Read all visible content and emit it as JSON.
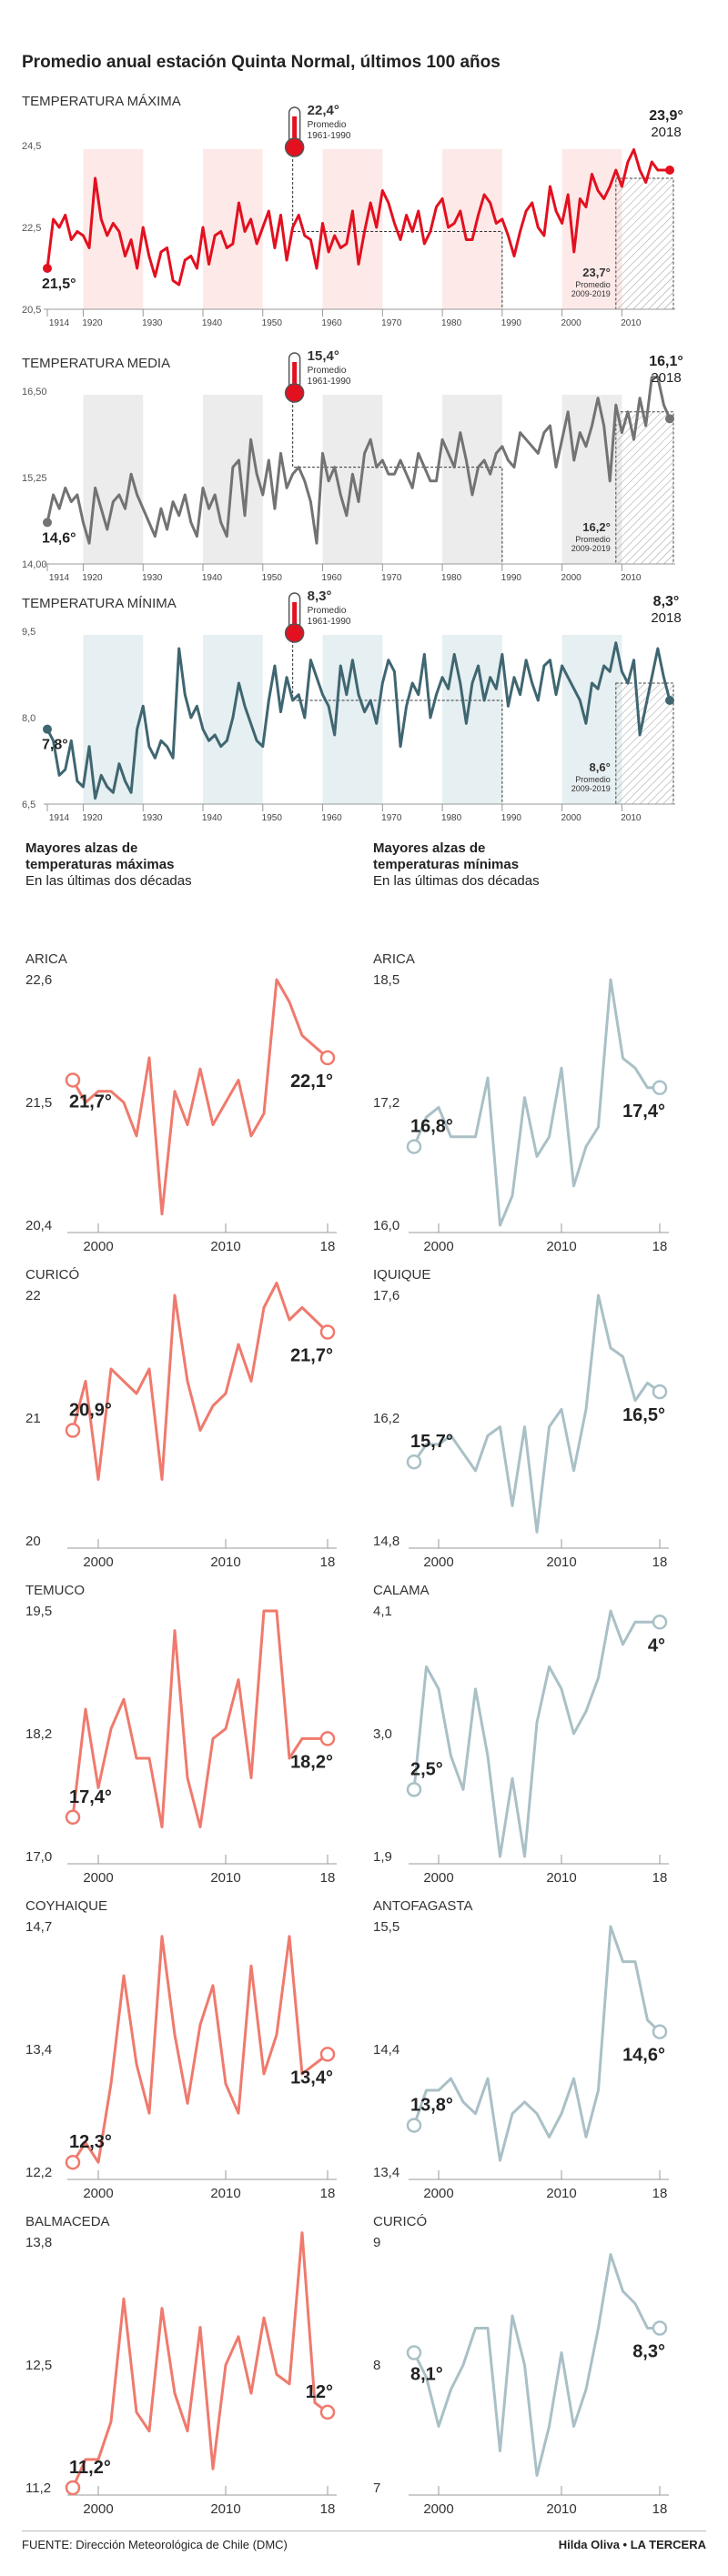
{
  "title": "Promedio anual estación Quinta Normal, últimos 100 años",
  "source": "FUENTE: Dirección Meteorológica de Chile (DMC)",
  "credit": "Hilda Oliva • LA TERCERA",
  "colors": {
    "max": "#e3101f",
    "med": "#737373",
    "min": "#3f6671",
    "small_max": "#ef7a6d",
    "small_min": "#a9c0c6",
    "band_max": "#fde9e8",
    "band_med": "#ececec",
    "band_min": "#e6eff1"
  },
  "sections": {
    "max": {
      "heading": "Mayores alzas de",
      "heading2": "temperaturas máximas",
      "sub": "En las últimas dos décadas"
    },
    "min": {
      "heading": "Mayores alzas de",
      "heading2": "temperaturas mínimas",
      "sub": "En las últimas dos décadas"
    }
  },
  "chart_data": [
    {
      "id": "tmax",
      "type": "line",
      "title": "TEMPERATURA MÁXIMA",
      "ylim": [
        20.5,
        24.5
      ],
      "yticks": [
        "24,5",
        "22,5",
        "20,5"
      ],
      "xticks": [
        "1914",
        "1920",
        "1930",
        "1940",
        "1950",
        "1960",
        "1970",
        "1980",
        "1990",
        "2000",
        "2010"
      ],
      "x_start": 1914,
      "x_end": 2018,
      "y_values": [
        21.5,
        22.7,
        22.5,
        22.8,
        22.2,
        22.4,
        22.3,
        22.0,
        23.7,
        22.7,
        22.3,
        22.6,
        22.4,
        21.8,
        22.2,
        21.5,
        22.5,
        21.8,
        21.3,
        21.9,
        22.0,
        21.2,
        21.1,
        21.7,
        21.8,
        21.5,
        22.5,
        21.6,
        22.3,
        22.4,
        22.0,
        22.1,
        23.1,
        22.4,
        22.7,
        22.1,
        22.5,
        22.9,
        22.0,
        22.8,
        21.7,
        22.5,
        22.8,
        22.3,
        22.2,
        21.5,
        22.6,
        21.9,
        22.3,
        22.0,
        22.1,
        22.9,
        21.6,
        22.4,
        23.1,
        22.5,
        23.4,
        23.1,
        22.6,
        22.2,
        22.8,
        22.4,
        22.9,
        22.1,
        22.4,
        23.0,
        23.2,
        22.5,
        22.6,
        22.9,
        22.2,
        22.2,
        22.8,
        23.3,
        23.1,
        22.6,
        22.7,
        22.3,
        21.8,
        22.4,
        22.9,
        23.1,
        22.5,
        22.3,
        23.5,
        22.9,
        22.6,
        23.3,
        21.9,
        23.2,
        23.0,
        23.8,
        23.4,
        23.2,
        23.5,
        23.9,
        23.5,
        24.1,
        24.4,
        23.9,
        23.6,
        24.1,
        23.9,
        23.9,
        23.9
      ],
      "start_label": "21,5°",
      "end_label": "23,9°",
      "end_year": "2018",
      "ref_value": 22.4,
      "ref_label": "22,4°",
      "ref_caption": [
        "Promedio",
        "1961-1990"
      ],
      "recent_value": 23.7,
      "recent_label": "23,7°",
      "recent_caption": [
        "Promedio",
        "2009-2019"
      ]
    },
    {
      "id": "tmed",
      "type": "line",
      "title": "TEMPERATURA MEDIA",
      "ylim": [
        14.0,
        16.5
      ],
      "yticks": [
        "16,50",
        "15,25",
        "14,00"
      ],
      "xticks": [
        "1914",
        "1920",
        "1930",
        "1940",
        "1950",
        "1960",
        "1970",
        "1980",
        "1990",
        "2000",
        "2010"
      ],
      "x_start": 1914,
      "x_end": 2018,
      "y_values": [
        14.6,
        15.0,
        14.8,
        15.1,
        14.9,
        15.0,
        14.6,
        14.3,
        15.1,
        14.8,
        14.5,
        14.9,
        15.0,
        14.8,
        15.3,
        15.0,
        14.8,
        14.6,
        14.4,
        14.8,
        14.5,
        14.9,
        14.7,
        15.0,
        14.6,
        14.4,
        15.1,
        14.8,
        15.0,
        14.6,
        14.4,
        15.4,
        15.5,
        14.7,
        15.8,
        15.3,
        15.0,
        15.5,
        14.8,
        15.6,
        15.1,
        15.3,
        15.4,
        15.2,
        14.9,
        14.3,
        15.6,
        15.2,
        15.4,
        15.0,
        14.7,
        15.3,
        14.9,
        15.6,
        15.8,
        15.4,
        15.5,
        15.3,
        15.3,
        15.5,
        15.3,
        15.1,
        15.6,
        15.4,
        15.2,
        15.2,
        15.8,
        15.6,
        15.4,
        15.9,
        15.5,
        15.0,
        15.4,
        15.5,
        15.3,
        15.6,
        15.7,
        15.5,
        15.4,
        15.9,
        15.8,
        15.7,
        15.6,
        15.9,
        16.0,
        15.4,
        15.8,
        16.2,
        15.5,
        15.9,
        15.7,
        16.0,
        16.4,
        16.0,
        15.2,
        16.3,
        15.9,
        16.2,
        15.8,
        16.4,
        16.0,
        16.7,
        16.7,
        16.3,
        16.1
      ],
      "start_label": "14,6°",
      "end_label": "16,1°",
      "end_year": "2018",
      "ref_value": 15.4,
      "ref_label": "15,4°",
      "ref_caption": [
        "Promedio",
        "1961-1990"
      ],
      "recent_value": 16.2,
      "recent_label": "16,2°",
      "recent_caption": [
        "Promedio",
        "2009-2019"
      ]
    },
    {
      "id": "tmin",
      "type": "line",
      "title": "TEMPERATURA MÍNIMA",
      "ylim": [
        6.5,
        9.5
      ],
      "yticks": [
        "9,5",
        "8,0",
        "6,5"
      ],
      "xticks": [
        "1914",
        "1920",
        "1930",
        "1940",
        "1950",
        "1960",
        "1970",
        "1980",
        "1990",
        "2000",
        "2010"
      ],
      "x_start": 1914,
      "x_end": 2018,
      "y_values": [
        7.8,
        7.6,
        7.0,
        7.1,
        7.6,
        6.9,
        6.8,
        7.5,
        6.6,
        7.0,
        6.8,
        6.7,
        7.2,
        6.9,
        6.7,
        7.8,
        8.2,
        7.5,
        7.3,
        7.6,
        7.5,
        7.3,
        9.2,
        8.4,
        8.0,
        8.2,
        7.8,
        7.6,
        7.7,
        7.5,
        7.6,
        8.0,
        8.6,
        8.2,
        7.9,
        7.6,
        7.5,
        8.3,
        8.9,
        8.1,
        8.7,
        8.3,
        8.4,
        8.0,
        9.0,
        8.7,
        8.4,
        8.2,
        7.7,
        8.9,
        8.4,
        9.0,
        8.4,
        8.1,
        8.3,
        7.9,
        8.6,
        9.0,
        8.8,
        7.5,
        8.2,
        8.6,
        8.4,
        9.1,
        8.0,
        8.4,
        8.7,
        8.5,
        9.1,
        8.6,
        7.9,
        8.6,
        8.9,
        8.3,
        8.7,
        8.5,
        9.1,
        8.2,
        8.7,
        8.4,
        9.0,
        8.6,
        8.3,
        8.9,
        9.0,
        8.4,
        8.9,
        8.7,
        8.5,
        8.3,
        7.9,
        8.6,
        8.5,
        8.9,
        8.8,
        9.3,
        8.8,
        8.6,
        9.0,
        7.7,
        8.2,
        8.7,
        9.2,
        8.7,
        8.3
      ],
      "start_label": "7,8°",
      "end_label": "8,3°",
      "end_year": "2018",
      "ref_value": 8.3,
      "ref_label": "8,3°",
      "ref_caption": [
        "Promedio",
        "1961-1990"
      ],
      "recent_value": 8.6,
      "recent_label": "8,6°",
      "recent_caption": [
        "Promedio",
        "2009-2019"
      ]
    },
    {
      "id": "arica-max",
      "type": "line",
      "title": "ARICA",
      "ylim": [
        20.4,
        22.6
      ],
      "yticks": [
        "22,6",
        "21,5",
        "20,4"
      ],
      "xticks": [
        "2000",
        "2010",
        "18"
      ],
      "x_start": 1998,
      "x_end": 2018,
      "y_values": [
        21.7,
        21.5,
        21.6,
        21.6,
        21.5,
        21.2,
        21.9,
        20.5,
        21.6,
        21.3,
        21.8,
        21.3,
        21.5,
        21.7,
        21.2,
        21.4,
        22.6,
        22.4,
        22.1,
        22.0,
        21.9
      ],
      "start_label": "21,7°",
      "end_label": "22,1°"
    },
    {
      "id": "arica-min",
      "type": "line",
      "title": "ARICA",
      "ylim": [
        16.0,
        18.5
      ],
      "yticks": [
        "18,5",
        "17,2",
        "16,0"
      ],
      "xticks": [
        "2000",
        "2010",
        "18"
      ],
      "x_start": 1998,
      "x_end": 2018,
      "y_values": [
        16.8,
        17.1,
        17.2,
        16.9,
        16.9,
        16.9,
        17.5,
        16.0,
        16.3,
        17.3,
        16.7,
        16.9,
        17.6,
        16.4,
        16.8,
        17.0,
        18.5,
        17.7,
        17.6,
        17.4,
        17.4
      ],
      "start_label": "16,8°",
      "end_label": "17,4°"
    },
    {
      "id": "curico-max",
      "type": "line",
      "title": "CURICÓ",
      "ylim": [
        20.0,
        22.0
      ],
      "yticks": [
        "22",
        "21",
        "20"
      ],
      "xticks": [
        "2000",
        "2010",
        "18"
      ],
      "x_start": 1998,
      "x_end": 2018,
      "y_values": [
        20.9,
        21.3,
        20.5,
        21.4,
        21.3,
        21.2,
        21.4,
        20.5,
        22.0,
        21.3,
        20.9,
        21.1,
        21.2,
        21.6,
        21.3,
        21.9,
        22.1,
        21.8,
        21.9,
        21.8,
        21.7
      ],
      "start_label": "20,9°",
      "end_label": "21,7°"
    },
    {
      "id": "iquique-min",
      "type": "line",
      "title": "IQUIQUE",
      "ylim": [
        14.8,
        17.6
      ],
      "yticks": [
        "17,6",
        "16,2",
        "14,8"
      ],
      "xticks": [
        "2000",
        "2010",
        "18"
      ],
      "x_start": 1998,
      "x_end": 2018,
      "y_values": [
        15.7,
        15.9,
        15.9,
        16.0,
        15.8,
        15.6,
        16.0,
        16.1,
        15.2,
        16.1,
        14.9,
        16.1,
        16.3,
        15.6,
        16.3,
        17.6,
        17.0,
        16.9,
        16.4,
        16.6,
        16.5
      ],
      "start_label": "15,7°",
      "end_label": "16,5°"
    },
    {
      "id": "temuco-max",
      "type": "line",
      "title": "TEMUCO",
      "ylim": [
        17.0,
        19.5
      ],
      "yticks": [
        "19,5",
        "18,2",
        "17,0"
      ],
      "xticks": [
        "2000",
        "2010",
        "18"
      ],
      "x_start": 1998,
      "x_end": 2018,
      "y_values": [
        17.4,
        18.5,
        17.7,
        18.3,
        18.6,
        18.0,
        18.0,
        17.3,
        19.3,
        17.8,
        17.3,
        18.2,
        18.3,
        18.8,
        17.8,
        19.5,
        19.5,
        18.0,
        18.2,
        18.2,
        18.2
      ],
      "start_label": "17,4°",
      "end_label": "18,2°"
    },
    {
      "id": "calama-min",
      "type": "line",
      "title": "CALAMA",
      "ylim": [
        1.9,
        4.1
      ],
      "yticks": [
        "4,1",
        "3,0",
        "1,9"
      ],
      "xticks": [
        "2000",
        "2010",
        "18"
      ],
      "x_start": 1998,
      "x_end": 2018,
      "y_values": [
        2.5,
        3.6,
        3.4,
        2.8,
        2.5,
        3.4,
        2.8,
        1.9,
        2.6,
        1.9,
        3.1,
        3.6,
        3.4,
        3.0,
        3.2,
        3.5,
        4.1,
        3.8,
        4.0,
        4.0,
        4.0
      ],
      "start_label": "2,5°",
      "end_label": "4°"
    },
    {
      "id": "coyhaique-max",
      "type": "line",
      "title": "COYHAIQUE",
      "ylim": [
        12.2,
        14.7
      ],
      "yticks": [
        "14,7",
        "13,4",
        "12,2"
      ],
      "xticks": [
        "2000",
        "2010",
        "18"
      ],
      "x_start": 1998,
      "x_end": 2018,
      "y_values": [
        12.3,
        12.5,
        12.3,
        13.1,
        14.2,
        13.3,
        12.8,
        14.6,
        13.6,
        12.9,
        13.7,
        14.1,
        13.1,
        12.8,
        14.3,
        13.2,
        13.6,
        14.6,
        13.2,
        13.3,
        13.4
      ],
      "start_label": "12,3°",
      "end_label": "13,4°"
    },
    {
      "id": "antofagasta-min",
      "type": "line",
      "title": "ANTOFAGASTA",
      "ylim": [
        13.4,
        15.5
      ],
      "yticks": [
        "15,5",
        "14,4",
        "13,4"
      ],
      "xticks": [
        "2000",
        "2010",
        "18"
      ],
      "x_start": 1998,
      "x_end": 2018,
      "y_values": [
        13.8,
        14.1,
        14.1,
        14.2,
        14.0,
        13.9,
        14.2,
        13.5,
        13.9,
        14.0,
        13.9,
        13.7,
        13.9,
        14.2,
        13.7,
        14.1,
        15.5,
        15.2,
        15.2,
        14.7,
        14.6
      ],
      "start_label": "13,8°",
      "end_label": "14,6°"
    },
    {
      "id": "balmaceda-max",
      "type": "line",
      "title": "BALMACEDA",
      "ylim": [
        11.2,
        13.8
      ],
      "yticks": [
        "13,8",
        "12,5",
        "11,2"
      ],
      "xticks": [
        "2000",
        "2010",
        "18"
      ],
      "x_start": 1998,
      "x_end": 2018,
      "y_values": [
        11.2,
        11.5,
        11.5,
        11.9,
        13.2,
        12.0,
        11.8,
        13.1,
        12.2,
        11.8,
        12.9,
        11.4,
        12.5,
        12.8,
        12.2,
        13.0,
        12.4,
        12.3,
        13.9,
        12.1,
        12.0
      ],
      "start_label": "11,2°",
      "end_label": "12°"
    },
    {
      "id": "curico-min",
      "type": "line",
      "title": "CURICÓ",
      "ylim": [
        7,
        9
      ],
      "yticks": [
        "9",
        "8",
        "7"
      ],
      "xticks": [
        "2000",
        "2010",
        "18"
      ],
      "x_start": 1998,
      "x_end": 2018,
      "y_values": [
        8.1,
        7.9,
        7.5,
        7.8,
        8.0,
        8.3,
        8.3,
        7.3,
        8.4,
        8.0,
        7.1,
        7.5,
        8.1,
        7.5,
        7.8,
        8.3,
        8.9,
        8.6,
        8.5,
        8.3,
        8.3
      ],
      "start_label": "8,1°",
      "end_label": "8,3°"
    }
  ]
}
